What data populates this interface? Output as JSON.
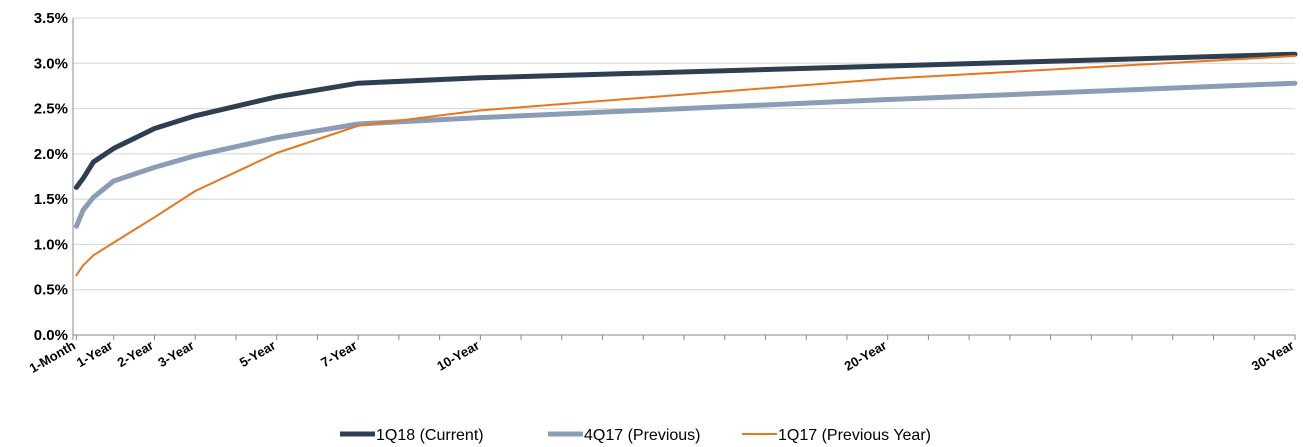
{
  "chart_data": {
    "type": "line",
    "title": "",
    "xlabel": "",
    "ylabel": "",
    "ylim": [
      0,
      3.5
    ],
    "y_ticks": [
      "0.0%",
      "0.5%",
      "1.0%",
      "1.5%",
      "2.0%",
      "2.5%",
      "3.0%",
      "3.5%"
    ],
    "y_tick_values": [
      0,
      0.5,
      1.0,
      1.5,
      2.0,
      2.5,
      3.0,
      3.5
    ],
    "x_labels": [
      "1-Month",
      "1-Year",
      "2-Year",
      "3-Year",
      "5-Year",
      "7-Year",
      "10-Year",
      "20-Year",
      "30-Year"
    ],
    "x_label_years": [
      0.0833,
      1,
      2,
      3,
      5,
      7,
      10,
      20,
      30
    ],
    "xlim": [
      0,
      30
    ],
    "grid": true,
    "legend_position": "bottom",
    "series": [
      {
        "name": "1Q18 (Current)",
        "color": "#2e3f52",
        "x": [
          0.0833,
          0.25,
          0.5,
          1,
          2,
          3,
          5,
          7,
          10,
          20,
          30
        ],
        "values": [
          1.63,
          1.73,
          1.91,
          2.06,
          2.28,
          2.42,
          2.63,
          2.78,
          2.84,
          2.97,
          3.1
        ]
      },
      {
        "name": "4Q17 (Previous)",
        "color": "#8b9db5",
        "x": [
          0.0833,
          0.25,
          0.5,
          1,
          2,
          3,
          5,
          7,
          10,
          20,
          30
        ],
        "values": [
          1.2,
          1.38,
          1.52,
          1.7,
          1.85,
          1.98,
          2.18,
          2.33,
          2.4,
          2.6,
          2.78
        ]
      },
      {
        "name": "1Q17 (Previous Year)",
        "color": "#e8761f",
        "x": [
          0.0833,
          0.25,
          0.5,
          1,
          2,
          3,
          5,
          7,
          10,
          20,
          30
        ],
        "values": [
          0.66,
          0.77,
          0.88,
          1.02,
          1.3,
          1.59,
          2.01,
          2.31,
          2.48,
          2.83,
          3.08
        ]
      }
    ]
  }
}
